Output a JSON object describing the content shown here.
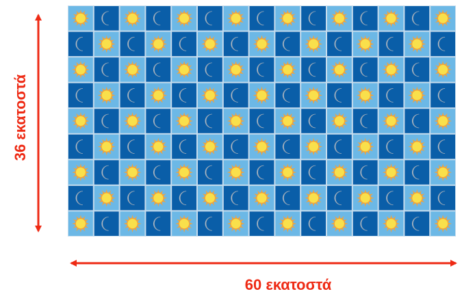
{
  "labels": {
    "height": "36 εκατοστά",
    "width": "60 εκατοστά"
  },
  "grid": {
    "rows": 9,
    "cols": 15,
    "first_tile": "sun",
    "tile_kinds": {
      "sun": {
        "icon": "sun-icon",
        "background": "#6cb8e6",
        "icon_color": "#f9e04b",
        "ray_color": "#f2a33a"
      },
      "moon": {
        "icon": "moon-icon",
        "background": "#0a5ea8",
        "icon_color": "#f2f2f2"
      }
    }
  },
  "colors": {
    "arrow": "#ee2a14",
    "tile_border": "#c6dced"
  }
}
